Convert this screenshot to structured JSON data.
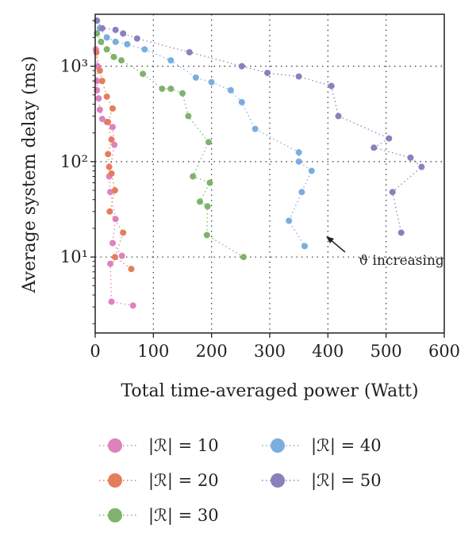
{
  "chart_data": {
    "type": "scatter",
    "xlabel": "Total time-averaged power (Watt)",
    "ylabel": "Average system delay (ms)",
    "xlim": [
      0,
      600
    ],
    "ylim": [
      1.6,
      3500
    ],
    "yscale": "log",
    "x_ticks": [
      0,
      100,
      200,
      300,
      400,
      500,
      600
    ],
    "x_tick_labels": [
      "0",
      "100",
      "200",
      "300",
      "400",
      "500",
      "600"
    ],
    "y_ticks": [
      10,
      100,
      1000
    ],
    "y_tick_labels": [
      "10¹",
      "10²",
      "10³"
    ],
    "grid": "dotted",
    "legend": "below",
    "annotation": {
      "text": "ϑ increasing",
      "arrow_from": [
        425,
        12
      ],
      "arrow_to": [
        398,
        15
      ]
    },
    "series": [
      {
        "name": "|ℛ| = 10",
        "color": "#de82be",
        "points": [
          [
            1,
            1500
          ],
          [
            4,
            1000
          ],
          [
            3,
            700
          ],
          [
            3,
            560
          ],
          [
            6,
            460
          ],
          [
            8,
            350
          ],
          [
            12,
            280
          ],
          [
            20,
            260
          ],
          [
            30,
            230
          ],
          [
            33,
            150
          ],
          [
            24,
            70
          ],
          [
            26,
            48
          ],
          [
            35,
            25
          ],
          [
            30,
            14
          ],
          [
            46,
            10.3
          ],
          [
            26,
            8.5
          ],
          [
            28,
            3.4
          ],
          [
            65,
            3.1
          ]
        ]
      },
      {
        "name": "|ℛ| = 20",
        "color": "#e57d5d",
        "points": [
          [
            2,
            1400
          ],
          [
            8,
            900
          ],
          [
            12,
            700
          ],
          [
            20,
            480
          ],
          [
            30,
            360
          ],
          [
            22,
            260
          ],
          [
            28,
            170
          ],
          [
            22,
            120
          ],
          [
            24,
            88
          ],
          [
            28,
            75
          ],
          [
            34,
            50
          ],
          [
            25,
            30
          ],
          [
            48,
            18
          ],
          [
            34,
            10
          ],
          [
            62,
            7.5
          ]
        ]
      },
      {
        "name": "|ℛ| = 30",
        "color": "#7fb36b",
        "points": [
          [
            3,
            2200
          ],
          [
            10,
            1800
          ],
          [
            20,
            1500
          ],
          [
            32,
            1250
          ],
          [
            45,
            1150
          ],
          [
            82,
            830
          ],
          [
            115,
            580
          ],
          [
            130,
            580
          ],
          [
            150,
            520
          ],
          [
            160,
            300
          ],
          [
            195,
            160
          ],
          [
            168,
            70
          ],
          [
            197,
            60
          ],
          [
            180,
            38
          ],
          [
            193,
            34
          ],
          [
            192,
            17
          ],
          [
            255,
            10
          ]
        ]
      },
      {
        "name": "|ℛ| = 40",
        "color": "#7aaedf",
        "points": [
          [
            8,
            2500
          ],
          [
            20,
            2000
          ],
          [
            35,
            1800
          ],
          [
            55,
            1700
          ],
          [
            85,
            1500
          ],
          [
            130,
            1150
          ],
          [
            173,
            760
          ],
          [
            200,
            680
          ],
          [
            233,
            560
          ],
          [
            252,
            420
          ],
          [
            275,
            220
          ],
          [
            350,
            125
          ],
          [
            350,
            100
          ],
          [
            372,
            80
          ],
          [
            355,
            48
          ],
          [
            333,
            24
          ],
          [
            360,
            13
          ]
        ]
      },
      {
        "name": "|ℛ| = 50",
        "color": "#8b80bd",
        "points": [
          [
            3,
            3000
          ],
          [
            12,
            2500
          ],
          [
            35,
            2400
          ],
          [
            48,
            2200
          ],
          [
            72,
            1950
          ],
          [
            162,
            1400
          ],
          [
            252,
            1000
          ],
          [
            296,
            850
          ],
          [
            350,
            780
          ],
          [
            406,
            620
          ],
          [
            418,
            300
          ],
          [
            505,
            175
          ],
          [
            479,
            140
          ],
          [
            542,
            110
          ],
          [
            561,
            88
          ],
          [
            511,
            48
          ],
          [
            526,
            18
          ]
        ]
      }
    ]
  }
}
